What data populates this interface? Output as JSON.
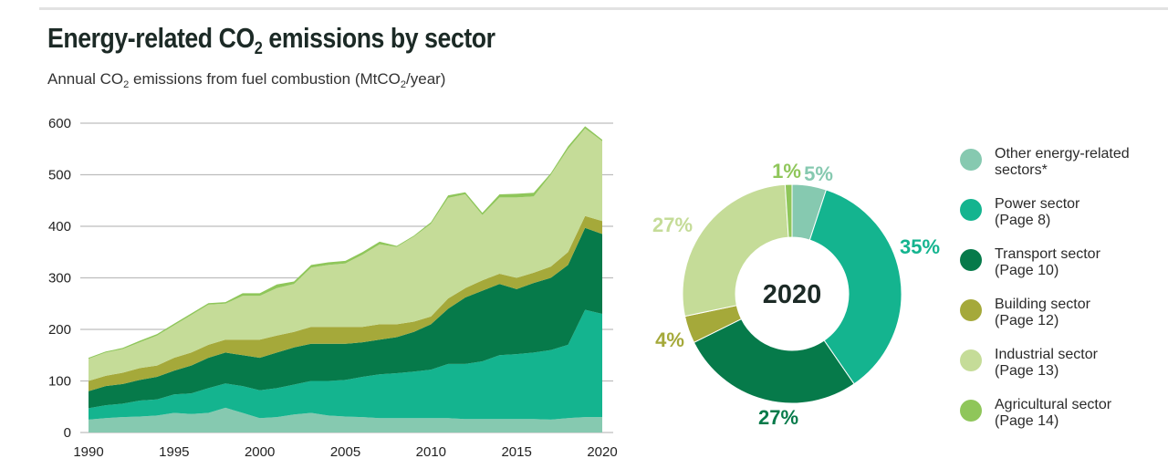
{
  "header": {
    "title_main": "Energy-related CO",
    "title_sub": "2",
    "title_end": " emissions by sector",
    "subtitle_a": "Annual CO",
    "subtitle_sub1": "2",
    "subtitle_b": " emissions from fuel combustion (MtCO",
    "subtitle_sub2": "2",
    "subtitle_c": "/year)"
  },
  "colors": {
    "other": "#86c9b0",
    "power": "#14b48f",
    "transport": "#067a4a",
    "building": "#a5a93a",
    "industrial": "#c5dc98",
    "agricultural": "#8fc65a"
  },
  "chart_data": [
    {
      "type": "area",
      "stacked": true,
      "title": "Energy-related CO2 emissions by sector",
      "subtitle": "Annual CO2 emissions from fuel combustion (MtCO2/year)",
      "xlabel": "",
      "ylabel": "MtCO2/year",
      "ylim": [
        0,
        600
      ],
      "yticks": [
        0,
        100,
        200,
        300,
        400,
        500,
        600
      ],
      "xticks": [
        1990,
        1995,
        2000,
        2005,
        2010,
        2015,
        2020
      ],
      "grid": true,
      "x": [
        1990,
        1991,
        1992,
        1993,
        1994,
        1995,
        1996,
        1997,
        1998,
        1999,
        2000,
        2001,
        2002,
        2003,
        2004,
        2005,
        2006,
        2007,
        2008,
        2009,
        2010,
        2011,
        2012,
        2013,
        2014,
        2015,
        2016,
        2017,
        2018,
        2019,
        2020
      ],
      "series": [
        {
          "key": "other",
          "name": "Other energy-related sectors*",
          "values": [
            25,
            28,
            30,
            31,
            33,
            38,
            36,
            38,
            48,
            38,
            28,
            30,
            35,
            38,
            33,
            31,
            30,
            28,
            28,
            28,
            28,
            28,
            26,
            26,
            26,
            26,
            26,
            25,
            28,
            30,
            30
          ]
        },
        {
          "key": "power",
          "name": "Power sector",
          "values": [
            22,
            25,
            26,
            31,
            31,
            36,
            40,
            48,
            47,
            52,
            54,
            56,
            58,
            62,
            67,
            71,
            78,
            85,
            87,
            90,
            94,
            105,
            107,
            112,
            124,
            126,
            129,
            135,
            142,
            208,
            200
          ]
        },
        {
          "key": "transport",
          "name": "Transport sector",
          "values": [
            33,
            37,
            38,
            40,
            44,
            46,
            54,
            59,
            60,
            60,
            63,
            69,
            72,
            72,
            72,
            70,
            67,
            67,
            70,
            77,
            88,
            107,
            129,
            137,
            138,
            126,
            135,
            140,
            155,
            159,
            155
          ]
        },
        {
          "key": "building",
          "name": "Building sector",
          "values": [
            20,
            20,
            22,
            23,
            22,
            25,
            25,
            25,
            25,
            30,
            35,
            33,
            30,
            33,
            33,
            33,
            30,
            30,
            25,
            20,
            15,
            20,
            18,
            20,
            20,
            22,
            20,
            22,
            25,
            23,
            25
          ]
        },
        {
          "key": "industrial",
          "name": "Industrial sector",
          "values": [
            43,
            45,
            46,
            50,
            58,
            63,
            73,
            78,
            70,
            85,
            85,
            92,
            93,
            115,
            120,
            123,
            140,
            155,
            150,
            165,
            180,
            195,
            182,
            127,
            148,
            156,
            148,
            178,
            200,
            170,
            155
          ]
        },
        {
          "key": "agricultural",
          "name": "Agricultural sector",
          "values": [
            2,
            2,
            2,
            3,
            3,
            3,
            3,
            3,
            3,
            5,
            5,
            7,
            5,
            5,
            5,
            5,
            5,
            5,
            2,
            2,
            3,
            5,
            4,
            4,
            6,
            7,
            7,
            3,
            5,
            4,
            3
          ]
        }
      ]
    },
    {
      "type": "pie",
      "donut": true,
      "center_label": "2020",
      "slices": [
        {
          "key": "other",
          "label": "5%",
          "value": 5
        },
        {
          "key": "power",
          "label": "35%",
          "value": 35
        },
        {
          "key": "transport",
          "label": "27%",
          "value": 27
        },
        {
          "key": "building",
          "label": "4%",
          "value": 4
        },
        {
          "key": "industrial",
          "label": "27%",
          "value": 27
        },
        {
          "key": "agricultural",
          "label": "1%",
          "value": 1
        }
      ]
    }
  ],
  "legend": [
    {
      "key": "other",
      "line1": "Other energy-related",
      "line2": "sectors*"
    },
    {
      "key": "power",
      "line1": "Power sector",
      "line2": "(Page 8)"
    },
    {
      "key": "transport",
      "line1": "Transport sector",
      "line2": "(Page 10)"
    },
    {
      "key": "building",
      "line1": "Building sector",
      "line2": "(Page 12)"
    },
    {
      "key": "industrial",
      "line1": "Industrial sector",
      "line2": "(Page 13)"
    },
    {
      "key": "agricultural",
      "line1": "Agricultural sector",
      "line2": "(Page 14)"
    }
  ]
}
